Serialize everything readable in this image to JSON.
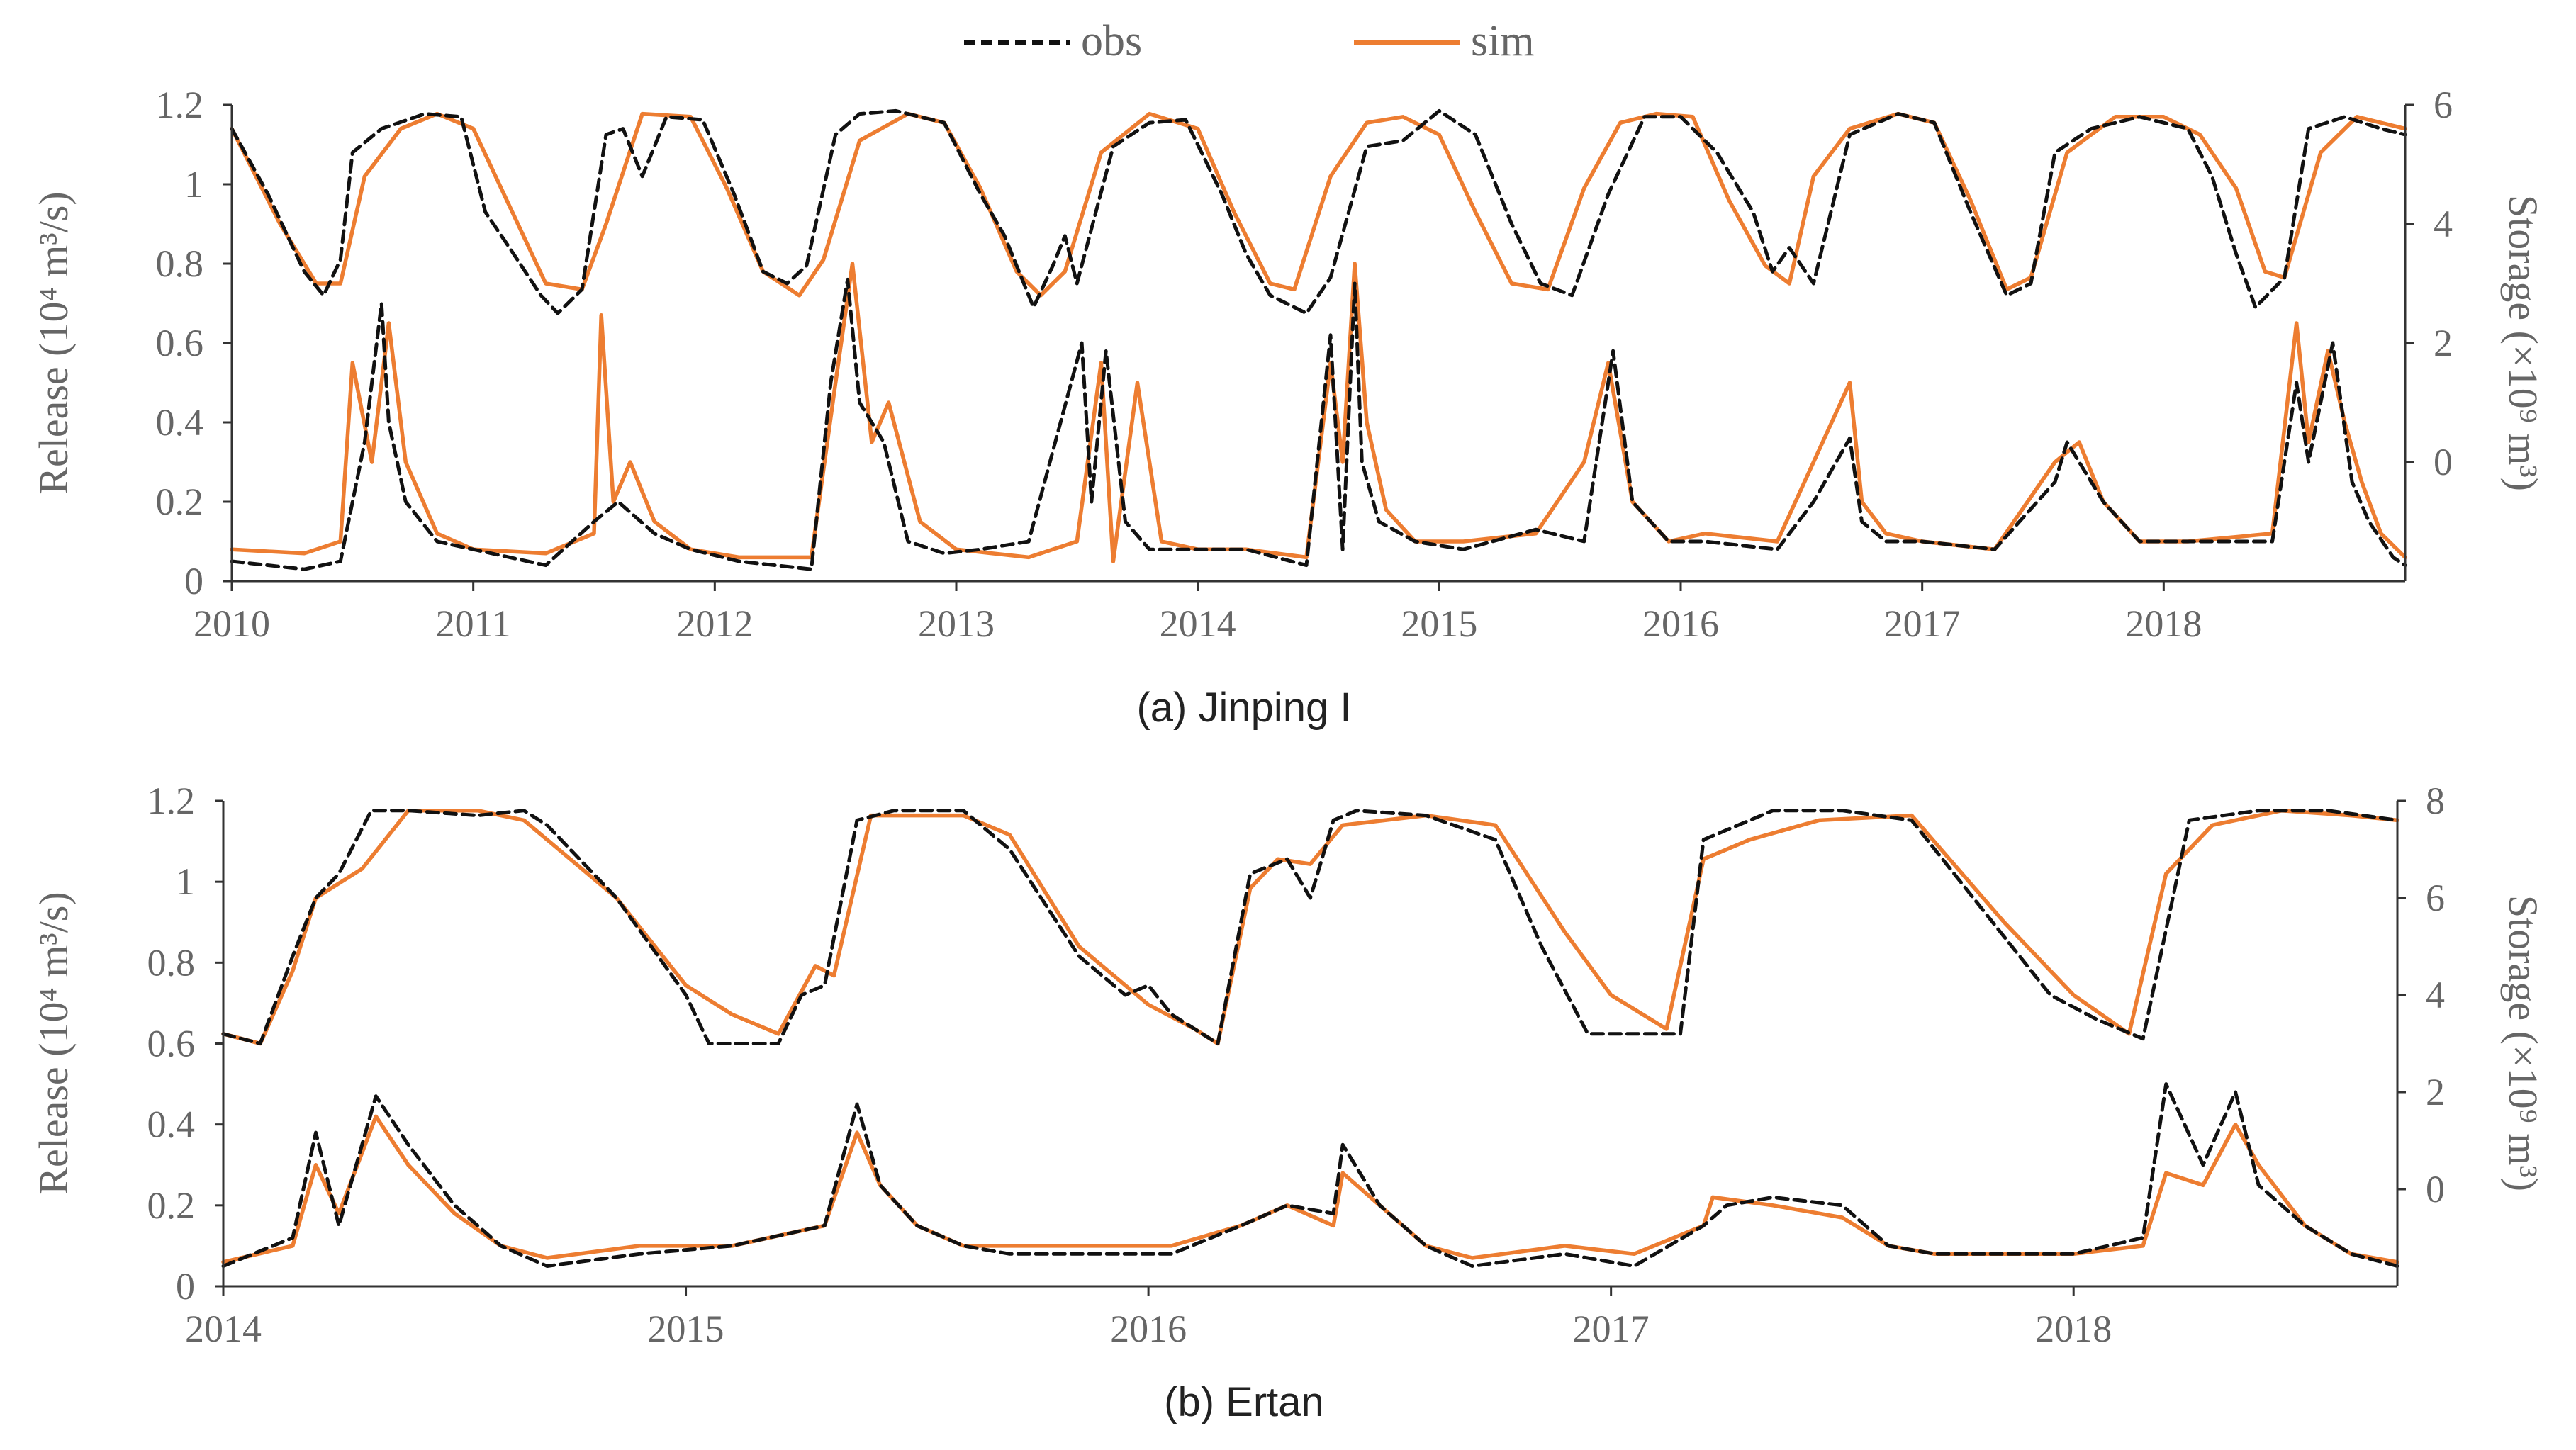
{
  "legend": {
    "obs": "obs",
    "sim": "sim"
  },
  "colors": {
    "obs": "#111111",
    "sim": "#ED7D31",
    "axis": "#333333",
    "text": "#666666"
  },
  "chart_data": [
    {
      "type": "line",
      "title": "(a) Jinping I",
      "ylabel_left": "Release (10⁴ m³/s)",
      "ylabel_right": "Storage (×10⁹ m³)",
      "xlim": [
        2010,
        2019
      ],
      "x_ticks": [
        2010,
        2011,
        2012,
        2013,
        2014,
        2015,
        2016,
        2017,
        2018
      ],
      "x_tick_labels": [
        "2010",
        "2011",
        "2012",
        "2013",
        "2014",
        "2015",
        "2016",
        "2017",
        "2018"
      ],
      "ylim_left": [
        0,
        1.2
      ],
      "y_left_ticks": [
        0,
        0.2,
        0.4,
        0.6,
        0.8,
        1,
        1.2
      ],
      "y_left_tick_labels": [
        "0",
        "0.2",
        "0.4",
        "0.6",
        "0.8",
        "1",
        "1.2"
      ],
      "ylim_right": [
        -2,
        6
      ],
      "y_right_ticks": [
        0,
        2,
        4,
        6
      ],
      "y_right_tick_labels": [
        "0",
        "2",
        "4",
        "6"
      ],
      "storage": {
        "obs": {
          "x": [
            2010.0,
            2010.15,
            2010.3,
            2010.38,
            2010.45,
            2010.5,
            2010.62,
            2010.8,
            2010.95,
            2011.05,
            2011.15,
            2011.28,
            2011.35,
            2011.45,
            2011.55,
            2011.62,
            2011.7,
            2011.8,
            2011.95,
            2012.08,
            2012.2,
            2012.3,
            2012.38,
            2012.5,
            2012.6,
            2012.75,
            2012.95,
            2013.1,
            2013.2,
            2013.32,
            2013.4,
            2013.45,
            2013.5,
            2013.65,
            2013.8,
            2013.95,
            2014.1,
            2014.2,
            2014.3,
            2014.45,
            2014.55,
            2014.7,
            2014.85,
            2015.0,
            2015.15,
            2015.3,
            2015.42,
            2015.55,
            2015.7,
            2015.85,
            2016.0,
            2016.15,
            2016.3,
            2016.38,
            2016.45,
            2016.55,
            2016.7,
            2016.9,
            2017.05,
            2017.2,
            2017.35,
            2017.45,
            2017.55,
            2017.7,
            2017.9,
            2018.1,
            2018.2,
            2018.3,
            2018.38,
            2018.5,
            2018.6,
            2018.75,
            2018.9,
            2019.0
          ],
          "y": [
            5.6,
            4.5,
            3.2,
            2.8,
            3.4,
            5.2,
            5.6,
            5.85,
            5.8,
            4.2,
            3.6,
            2.8,
            2.5,
            2.9,
            5.5,
            5.6,
            4.8,
            5.8,
            5.75,
            4.5,
            3.2,
            3.0,
            3.3,
            5.5,
            5.85,
            5.9,
            5.7,
            4.5,
            3.8,
            2.6,
            3.3,
            3.8,
            3.0,
            5.3,
            5.7,
            5.75,
            4.5,
            3.5,
            2.8,
            2.5,
            3.1,
            5.3,
            5.4,
            5.9,
            5.5,
            4.0,
            3.0,
            2.8,
            4.5,
            5.8,
            5.8,
            5.2,
            4.2,
            3.2,
            3.6,
            3.0,
            5.5,
            5.85,
            5.7,
            4.2,
            2.8,
            3.0,
            5.2,
            5.6,
            5.8,
            5.6,
            4.8,
            3.5,
            2.6,
            3.1,
            5.6,
            5.8,
            5.6,
            5.5
          ]
        },
        "sim": {
          "x": [
            2010.0,
            2010.2,
            2010.35,
            2010.45,
            2010.55,
            2010.7,
            2010.85,
            2011.0,
            2011.15,
            2011.3,
            2011.45,
            2011.55,
            2011.7,
            2011.9,
            2012.05,
            2012.2,
            2012.35,
            2012.45,
            2012.6,
            2012.8,
            2012.95,
            2013.1,
            2013.25,
            2013.35,
            2013.45,
            2013.6,
            2013.8,
            2014.0,
            2014.15,
            2014.3,
            2014.4,
            2014.55,
            2014.7,
            2014.85,
            2015.0,
            2015.15,
            2015.3,
            2015.45,
            2015.6,
            2015.75,
            2015.9,
            2016.05,
            2016.2,
            2016.35,
            2016.45,
            2016.55,
            2016.7,
            2016.9,
            2017.05,
            2017.2,
            2017.35,
            2017.45,
            2017.6,
            2017.8,
            2018.0,
            2018.15,
            2018.3,
            2018.42,
            2018.5,
            2018.65,
            2018.8,
            2019.0
          ],
          "y": [
            5.6,
            4.0,
            3.0,
            3.0,
            4.8,
            5.6,
            5.85,
            5.6,
            4.3,
            3.0,
            2.9,
            4.0,
            5.85,
            5.8,
            4.6,
            3.2,
            2.8,
            3.4,
            5.4,
            5.85,
            5.7,
            4.6,
            3.2,
            2.8,
            3.2,
            5.2,
            5.85,
            5.6,
            4.2,
            3.0,
            2.9,
            4.8,
            5.7,
            5.8,
            5.5,
            4.2,
            3.0,
            2.9,
            4.6,
            5.7,
            5.85,
            5.8,
            4.4,
            3.3,
            3.0,
            4.8,
            5.6,
            5.85,
            5.7,
            4.4,
            2.9,
            3.1,
            5.2,
            5.8,
            5.8,
            5.5,
            4.6,
            3.2,
            3.1,
            5.2,
            5.8,
            5.6
          ]
        }
      },
      "release": {
        "obs": {
          "x": [
            2010.0,
            2010.3,
            2010.45,
            2010.55,
            2010.62,
            2010.65,
            2010.72,
            2010.85,
            2011.0,
            2011.3,
            2011.5,
            2011.6,
            2011.75,
            2011.9,
            2012.1,
            2012.4,
            2012.48,
            2012.55,
            2012.6,
            2012.7,
            2012.8,
            2012.95,
            2013.1,
            2013.3,
            2013.52,
            2013.56,
            2013.62,
            2013.7,
            2013.8,
            2013.95,
            2014.2,
            2014.45,
            2014.55,
            2014.6,
            2014.65,
            2014.68,
            2014.75,
            2014.9,
            2015.1,
            2015.4,
            2015.6,
            2015.72,
            2015.8,
            2015.95,
            2016.1,
            2016.4,
            2016.55,
            2016.7,
            2016.75,
            2016.85,
            2017.0,
            2017.3,
            2017.55,
            2017.6,
            2017.75,
            2017.9,
            2018.1,
            2018.45,
            2018.55,
            2018.6,
            2018.7,
            2018.78,
            2018.85,
            2018.95,
            2019.0
          ],
          "y": [
            0.05,
            0.03,
            0.05,
            0.35,
            0.7,
            0.4,
            0.2,
            0.1,
            0.08,
            0.04,
            0.15,
            0.2,
            0.12,
            0.08,
            0.05,
            0.03,
            0.5,
            0.76,
            0.45,
            0.35,
            0.1,
            0.07,
            0.08,
            0.1,
            0.6,
            0.2,
            0.58,
            0.15,
            0.08,
            0.08,
            0.08,
            0.04,
            0.62,
            0.08,
            0.75,
            0.3,
            0.15,
            0.1,
            0.08,
            0.13,
            0.1,
            0.58,
            0.2,
            0.1,
            0.1,
            0.08,
            0.2,
            0.36,
            0.15,
            0.1,
            0.1,
            0.08,
            0.25,
            0.35,
            0.2,
            0.1,
            0.1,
            0.1,
            0.5,
            0.3,
            0.6,
            0.25,
            0.15,
            0.06,
            0.04
          ]
        },
        "sim": {
          "x": [
            2010.0,
            2010.3,
            2010.45,
            2010.5,
            2010.58,
            2010.65,
            2010.72,
            2010.85,
            2011.0,
            2011.3,
            2011.5,
            2011.53,
            2011.58,
            2011.65,
            2011.75,
            2011.9,
            2012.1,
            2012.4,
            2012.5,
            2012.57,
            2012.65,
            2012.72,
            2012.85,
            2013.0,
            2013.3,
            2013.5,
            2013.6,
            2013.65,
            2013.75,
            2013.85,
            2014.0,
            2014.2,
            2014.45,
            2014.55,
            2014.6,
            2014.65,
            2014.7,
            2014.78,
            2014.9,
            2015.1,
            2015.4,
            2015.6,
            2015.7,
            2015.8,
            2015.95,
            2016.1,
            2016.4,
            2016.55,
            2016.7,
            2016.75,
            2016.85,
            2017.0,
            2017.3,
            2017.55,
            2017.65,
            2017.75,
            2017.9,
            2018.1,
            2018.45,
            2018.55,
            2018.6,
            2018.68,
            2018.75,
            2018.82,
            2018.9,
            2019.0
          ],
          "y": [
            0.08,
            0.07,
            0.1,
            0.55,
            0.3,
            0.65,
            0.3,
            0.12,
            0.08,
            0.07,
            0.12,
            0.67,
            0.2,
            0.3,
            0.15,
            0.08,
            0.06,
            0.06,
            0.5,
            0.8,
            0.35,
            0.45,
            0.15,
            0.08,
            0.06,
            0.1,
            0.55,
            0.05,
            0.5,
            0.1,
            0.08,
            0.08,
            0.06,
            0.55,
            0.3,
            0.8,
            0.4,
            0.18,
            0.1,
            0.1,
            0.12,
            0.3,
            0.55,
            0.2,
            0.1,
            0.12,
            0.1,
            0.3,
            0.5,
            0.2,
            0.12,
            0.1,
            0.08,
            0.3,
            0.35,
            0.2,
            0.1,
            0.1,
            0.12,
            0.65,
            0.35,
            0.58,
            0.4,
            0.25,
            0.12,
            0.06
          ]
        }
      }
    },
    {
      "type": "line",
      "title": "(b) Ertan",
      "ylabel_left": "Release (10⁴ m³/s)",
      "ylabel_right": "Storage (×10⁹ m³)",
      "xlim": [
        2014,
        2018.7
      ],
      "x_ticks": [
        2014,
        2015,
        2016,
        2017,
        2018
      ],
      "x_tick_labels": [
        "2014",
        "2015",
        "2016",
        "2017",
        "2018"
      ],
      "ylim_left": [
        0,
        1.2
      ],
      "y_left_ticks": [
        0,
        0.2,
        0.4,
        0.6,
        0.8,
        1,
        1.2
      ],
      "y_left_tick_labels": [
        "0",
        "0.2",
        "0.4",
        "0.6",
        "0.8",
        "1",
        "1.2"
      ],
      "ylim_right": [
        -2,
        8
      ],
      "y_right_ticks": [
        0,
        2,
        4,
        6,
        8
      ],
      "y_right_tick_labels": [
        "0",
        "2",
        "4",
        "6",
        "8"
      ],
      "storage": {
        "obs": {
          "x": [
            2014.0,
            2014.08,
            2014.15,
            2014.2,
            2014.25,
            2014.32,
            2014.4,
            2014.55,
            2014.65,
            2014.7,
            2014.85,
            2015.0,
            2015.05,
            2015.2,
            2015.25,
            2015.3,
            2015.37,
            2015.45,
            2015.6,
            2015.7,
            2015.85,
            2015.95,
            2016.0,
            2016.05,
            2016.15,
            2016.22,
            2016.3,
            2016.35,
            2016.4,
            2016.45,
            2016.6,
            2016.75,
            2016.85,
            2016.95,
            2017.05,
            2017.15,
            2017.2,
            2017.35,
            2017.5,
            2017.65,
            2017.85,
            2017.95,
            2018.05,
            2018.15,
            2018.25,
            2018.4,
            2018.55,
            2018.7
          ],
          "y": [
            3.2,
            3.0,
            4.8,
            6.0,
            6.5,
            7.8,
            7.8,
            7.7,
            7.8,
            7.5,
            6.0,
            4.0,
            3.0,
            3.0,
            4.0,
            4.2,
            7.6,
            7.8,
            7.8,
            7.0,
            4.8,
            4.0,
            4.2,
            3.6,
            3.0,
            6.5,
            6.8,
            6.0,
            7.6,
            7.8,
            7.7,
            7.2,
            5.0,
            3.2,
            3.2,
            3.2,
            7.2,
            7.8,
            7.8,
            7.6,
            5.2,
            4.0,
            3.5,
            3.1,
            7.6,
            7.8,
            7.8,
            7.6
          ]
        },
        "sim": {
          "x": [
            2014.0,
            2014.08,
            2014.15,
            2014.2,
            2014.3,
            2014.4,
            2014.55,
            2014.65,
            2014.85,
            2015.0,
            2015.1,
            2015.2,
            2015.28,
            2015.32,
            2015.4,
            2015.6,
            2015.7,
            2015.85,
            2016.0,
            2016.1,
            2016.15,
            2016.22,
            2016.28,
            2016.35,
            2016.42,
            2016.6,
            2016.75,
            2016.9,
            2017.0,
            2017.12,
            2017.2,
            2017.3,
            2017.45,
            2017.65,
            2017.85,
            2018.0,
            2018.12,
            2018.2,
            2018.3,
            2018.45,
            2018.6,
            2018.7
          ],
          "y": [
            3.2,
            3.0,
            4.5,
            6.0,
            6.6,
            7.8,
            7.8,
            7.6,
            6.0,
            4.2,
            3.6,
            3.2,
            4.6,
            4.4,
            7.7,
            7.7,
            7.3,
            5.0,
            3.8,
            3.3,
            3.0,
            6.2,
            6.8,
            6.7,
            7.5,
            7.7,
            7.5,
            5.3,
            4.0,
            3.3,
            6.8,
            7.2,
            7.6,
            7.7,
            5.5,
            4.0,
            3.2,
            6.5,
            7.5,
            7.8,
            7.7,
            7.6
          ]
        }
      },
      "release": {
        "obs": {
          "x": [
            2014.0,
            2014.15,
            2014.2,
            2014.25,
            2014.33,
            2014.4,
            2014.5,
            2014.6,
            2014.7,
            2014.9,
            2015.1,
            2015.3,
            2015.37,
            2015.42,
            2015.5,
            2015.6,
            2015.7,
            2015.9,
            2016.05,
            2016.2,
            2016.3,
            2016.4,
            2016.42,
            2016.5,
            2016.6,
            2016.7,
            2016.9,
            2017.05,
            2017.2,
            2017.25,
            2017.35,
            2017.5,
            2017.6,
            2017.7,
            2017.9,
            2018.0,
            2018.15,
            2018.2,
            2018.28,
            2018.35,
            2018.4,
            2018.5,
            2018.6,
            2018.7
          ],
          "y": [
            0.05,
            0.12,
            0.38,
            0.15,
            0.47,
            0.35,
            0.2,
            0.1,
            0.05,
            0.08,
            0.1,
            0.15,
            0.45,
            0.25,
            0.15,
            0.1,
            0.08,
            0.08,
            0.08,
            0.15,
            0.2,
            0.18,
            0.35,
            0.2,
            0.1,
            0.05,
            0.08,
            0.05,
            0.15,
            0.2,
            0.22,
            0.2,
            0.1,
            0.08,
            0.08,
            0.08,
            0.12,
            0.5,
            0.3,
            0.48,
            0.25,
            0.15,
            0.08,
            0.05
          ]
        },
        "sim": {
          "x": [
            2014.0,
            2014.15,
            2014.2,
            2014.25,
            2014.33,
            2014.4,
            2014.5,
            2014.6,
            2014.7,
            2014.9,
            2015.1,
            2015.3,
            2015.37,
            2015.42,
            2015.5,
            2015.6,
            2015.7,
            2015.9,
            2016.05,
            2016.2,
            2016.3,
            2016.4,
            2016.42,
            2016.5,
            2016.6,
            2016.7,
            2016.9,
            2017.05,
            2017.2,
            2017.22,
            2017.35,
            2017.5,
            2017.6,
            2017.7,
            2017.9,
            2018.0,
            2018.15,
            2018.2,
            2018.28,
            2018.35,
            2018.4,
            2018.5,
            2018.6,
            2018.7
          ],
          "y": [
            0.06,
            0.1,
            0.3,
            0.18,
            0.42,
            0.3,
            0.18,
            0.1,
            0.07,
            0.1,
            0.1,
            0.15,
            0.38,
            0.25,
            0.15,
            0.1,
            0.1,
            0.1,
            0.1,
            0.15,
            0.2,
            0.15,
            0.28,
            0.2,
            0.1,
            0.07,
            0.1,
            0.08,
            0.15,
            0.22,
            0.2,
            0.17,
            0.1,
            0.08,
            0.08,
            0.08,
            0.1,
            0.28,
            0.25,
            0.4,
            0.3,
            0.15,
            0.08,
            0.06
          ]
        }
      }
    }
  ]
}
